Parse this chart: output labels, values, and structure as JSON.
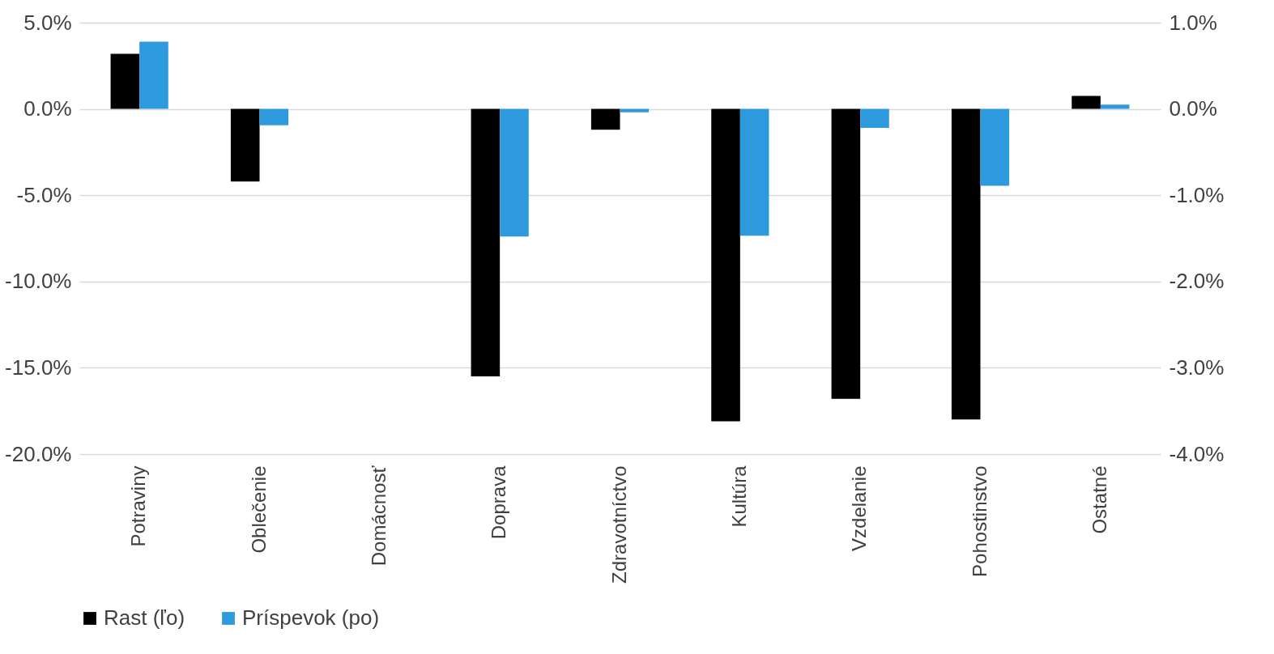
{
  "chart_data": {
    "type": "bar",
    "categories": [
      "Potraviny",
      "Oblečenie",
      "Domácnosť",
      "Doprava",
      "Zdravotníctvo",
      "Kultúra",
      "Vzdelanie",
      "Pohostinstvo",
      "Ostatné"
    ],
    "series": [
      {
        "name": "Rast (ľo)",
        "color": "#000000",
        "values": [
          3.2,
          -4.2,
          0.0,
          -15.5,
          -1.2,
          -18.1,
          -16.8,
          -18.0,
          0.75
        ]
      },
      {
        "name": "Príspevok (po)",
        "color": "#2e9ade",
        "axis": "y2",
        "values": [
          0.78,
          -0.19,
          0.0,
          -1.48,
          -0.04,
          -1.47,
          -0.22,
          -0.89,
          0.05
        ]
      }
    ],
    "ylim": [
      -20,
      5
    ],
    "yticks": [
      {
        "value": -20,
        "label": "-20.0%"
      },
      {
        "value": -15,
        "label": "-15.0%"
      },
      {
        "value": -10,
        "label": "-10.0%"
      },
      {
        "value": -5,
        "label": "-5.0%"
      },
      {
        "value": 0,
        "label": "0.0%"
      },
      {
        "value": 5,
        "label": "5.0%"
      }
    ],
    "y2lim": [
      -4,
      1
    ],
    "y2ticks": [
      {
        "value": -4,
        "label": "-4.0%"
      },
      {
        "value": -3,
        "label": "-3.0%"
      },
      {
        "value": -2,
        "label": "-2.0%"
      },
      {
        "value": -1,
        "label": "-1.0%"
      },
      {
        "value": 0,
        "label": "0.0%"
      },
      {
        "value": 1,
        "label": "1.0%"
      }
    ],
    "grid": "y",
    "legend": "bottom"
  }
}
